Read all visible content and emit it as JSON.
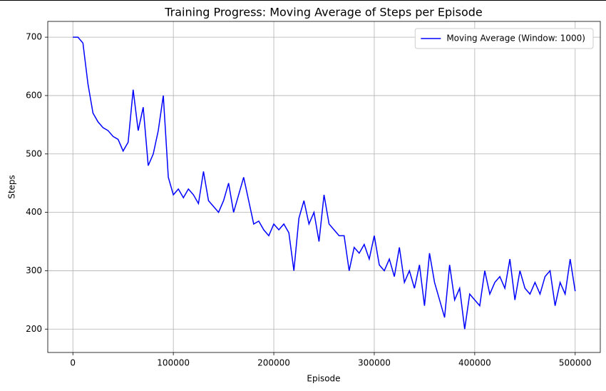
{
  "chart_data": {
    "type": "line",
    "title": "Training Progress: Moving Average of Steps per Episode",
    "x_label": "Episode",
    "y_label": "Steps",
    "x": [
      0,
      5000,
      10000,
      15000,
      20000,
      25000,
      30000,
      35000,
      40000,
      45000,
      50000,
      55000,
      60000,
      65000,
      70000,
      75000,
      80000,
      85000,
      90000,
      95000,
      100000,
      105000,
      110000,
      115000,
      120000,
      125000,
      130000,
      135000,
      140000,
      145000,
      150000,
      155000,
      160000,
      165000,
      170000,
      175000,
      180000,
      185000,
      190000,
      195000,
      200000,
      205000,
      210000,
      215000,
      220000,
      225000,
      230000,
      235000,
      240000,
      245000,
      250000,
      255000,
      260000,
      265000,
      270000,
      275000,
      280000,
      285000,
      290000,
      295000,
      300000,
      305000,
      310000,
      315000,
      320000,
      325000,
      330000,
      335000,
      340000,
      345000,
      350000,
      355000,
      360000,
      365000,
      370000,
      375000,
      380000,
      385000,
      390000,
      395000,
      400000,
      405000,
      410000,
      415000,
      420000,
      425000,
      430000,
      435000,
      440000,
      445000,
      450000,
      455000,
      460000,
      465000,
      470000,
      475000,
      480000,
      485000,
      490000,
      495000,
      500000
    ],
    "series": [
      {
        "name": "Moving Average (Window: 1000)",
        "color": "#0000ff",
        "values": [
          700,
          700,
          690,
          620,
          570,
          555,
          545,
          540,
          530,
          525,
          505,
          520,
          610,
          540,
          580,
          480,
          500,
          540,
          600,
          460,
          430,
          440,
          425,
          440,
          430,
          415,
          470,
          420,
          410,
          400,
          420,
          450,
          400,
          430,
          460,
          420,
          380,
          385,
          370,
          360,
          380,
          370,
          380,
          365,
          300,
          390,
          420,
          380,
          400,
          350,
          430,
          380,
          370,
          360,
          360,
          300,
          340,
          330,
          345,
          320,
          360,
          310,
          300,
          320,
          290,
          340,
          280,
          300,
          270,
          310,
          240,
          330,
          280,
          250,
          220,
          310,
          250,
          270,
          200,
          260,
          250,
          240,
          300,
          260,
          280,
          290,
          270,
          320,
          250,
          300,
          270,
          260,
          280,
          260,
          290,
          300,
          240,
          280,
          260,
          320,
          265
        ]
      }
    ],
    "xlim": [
      -25000,
      525000
    ],
    "ylim": [
      160,
      727
    ],
    "xticks": [
      0,
      100000,
      200000,
      300000,
      400000,
      500000
    ],
    "yticks": [
      200,
      300,
      400,
      500,
      600,
      700
    ],
    "grid": true,
    "legend": "upper right"
  }
}
